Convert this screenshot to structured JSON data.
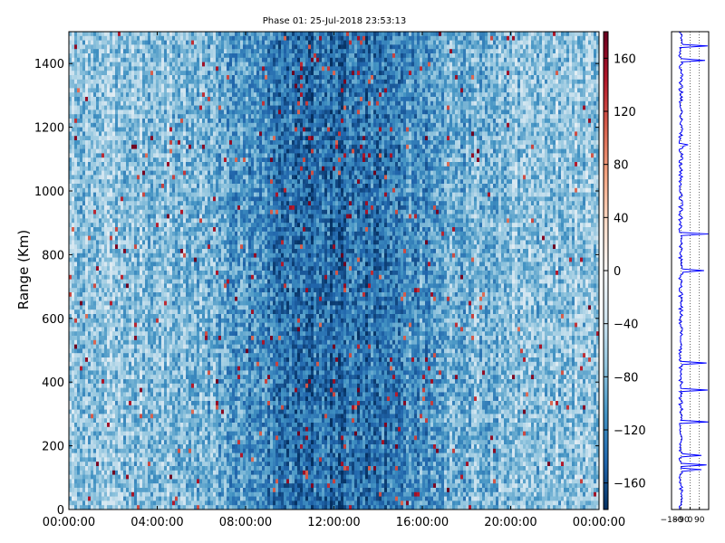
{
  "chart_data": [
    {
      "type": "heatmap",
      "title": "Phase 01: 25-Jul-2018 23:53:13",
      "ylabel": "Range (Km)",
      "xlabel": "",
      "x_tick_labels": [
        "00:00:00",
        "04:00:00",
        "08:00:00",
        "12:00:00",
        "16:00:00",
        "20:00:00",
        "00:00:00"
      ],
      "x_range_hours": [
        0,
        24
      ],
      "y_ticks": [
        0,
        200,
        400,
        600,
        800,
        1000,
        1200,
        1400
      ],
      "ylim": [
        0,
        1500
      ],
      "colormap": "RdBu_r",
      "colorbar": {
        "ticks": [
          160,
          120,
          80,
          40,
          0,
          -40,
          -80,
          -120,
          -160
        ],
        "range": [
          -180,
          180
        ]
      },
      "value_distribution": "mostly -180 to -60 (blue), sparse positive outliers up to ~180 (red); darkest band around 08:00-16:00",
      "colors": {
        "low": "#053061",
        "mid": "#f7f7f7",
        "high": "#67001f"
      }
    },
    {
      "type": "line",
      "xlim": [
        -180,
        180
      ],
      "x_tick_labels": [
        "−180",
        "−90",
        "0",
        "90"
      ],
      "ylim": [
        0,
        1500
      ],
      "line_color": "#0000ff",
      "grid": "vertical dotted",
      "profile_baseline": -90,
      "spikes": [
        {
          "y": 1455,
          "x": 170
        },
        {
          "y": 1410,
          "x": 145
        },
        {
          "y": 1145,
          "x": -20
        },
        {
          "y": 865,
          "x": 175
        },
        {
          "y": 752,
          "x": 135
        },
        {
          "y": 462,
          "x": 160
        },
        {
          "y": 375,
          "x": 170
        },
        {
          "y": 275,
          "x": 175
        },
        {
          "y": 170,
          "x": 110
        },
        {
          "y": 140,
          "x": 160
        },
        {
          "y": 125,
          "x": 110
        }
      ]
    }
  ]
}
